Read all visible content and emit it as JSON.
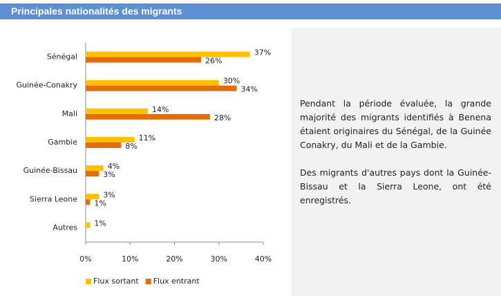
{
  "header": {
    "title": "Principales nationalités des migrants"
  },
  "chart_data": {
    "type": "bar",
    "orientation": "horizontal",
    "categories": [
      "Sénégal",
      "Guinée-Conakry",
      "Mali",
      "Gambie",
      "Guinée-Bissau",
      "Sierra Leone",
      "Autres"
    ],
    "series": [
      {
        "name": "Flux sortant",
        "color": "#ffc000",
        "values": [
          37,
          30,
          14,
          11,
          4,
          3,
          1
        ],
        "value_labels": [
          "37%",
          "30%",
          "14%",
          "11%",
          "4%",
          "3%",
          "1%"
        ]
      },
      {
        "name": "Flux entrant",
        "color": "#e46c0a",
        "values": [
          26,
          34,
          28,
          8,
          3,
          1,
          null
        ],
        "value_labels": [
          "26%",
          "34%",
          "28%",
          "8%",
          "3%",
          "1%",
          null
        ]
      }
    ],
    "xlim": [
      0,
      40
    ],
    "xticks": [
      {
        "value": 0,
        "label": "0%"
      },
      {
        "value": 10,
        "label": "10%"
      },
      {
        "value": 20,
        "label": "20%"
      },
      {
        "value": 30,
        "label": "30%"
      },
      {
        "value": 40,
        "label": "40%"
      }
    ],
    "legend": "bottom"
  },
  "text": {
    "paragraphs": [
      "Pendant la période évaluée, la grande majorité des migrants identifiés à Benena étaient originaires du Sénégal, de la Guinée Conakry, du Mali et de la Gambie.",
      "Des migrants d'autres pays dont la Guinée-Bissau et la Sierra Leone, ont été enregistrés."
    ]
  }
}
